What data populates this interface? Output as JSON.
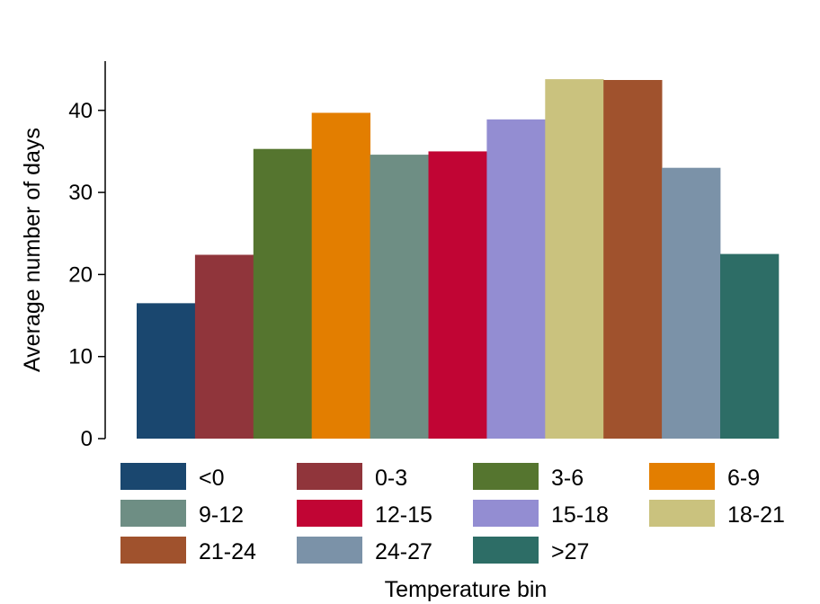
{
  "chart_data": {
    "type": "bar",
    "title": "",
    "xlabel": "Temperature bin",
    "ylabel": "Average number of days",
    "ylim": [
      0,
      46
    ],
    "yticks": [
      0,
      10,
      20,
      30,
      40
    ],
    "grid": false,
    "legend_position": "bottom",
    "categories": [
      "<0",
      "0-3",
      "3-6",
      "6-9",
      "9-12",
      "12-15",
      "15-18",
      "18-21",
      "21-24",
      "24-27",
      ">27"
    ],
    "values": [
      16.5,
      22.4,
      35.3,
      39.7,
      34.6,
      35.0,
      38.9,
      43.8,
      43.7,
      33.0,
      22.5
    ],
    "colors": [
      "#1a476f",
      "#90353b",
      "#55752f",
      "#e37e00",
      "#6e8e84",
      "#c10534",
      "#938dd2",
      "#cac27e",
      "#a0522d",
      "#7b92a8",
      "#2d6d66"
    ]
  }
}
